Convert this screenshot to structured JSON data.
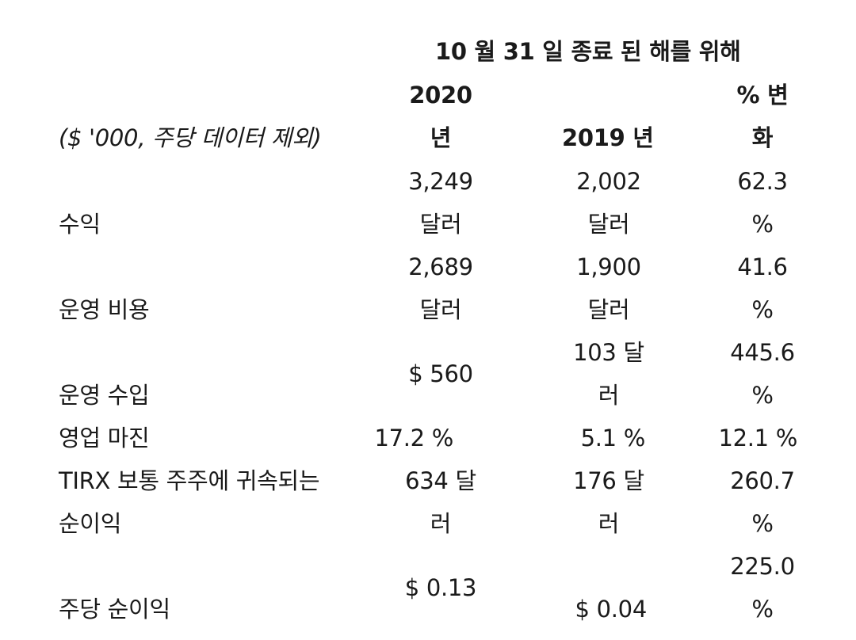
{
  "table": {
    "period_header": "10 월 31 일 종료 된 해를 위해",
    "unit_label": "($ '000, 주당 데이터 제외)",
    "columns": [
      {
        "line1": "2020",
        "line2": "년"
      },
      {
        "line1": "",
        "line2": "2019 년"
      },
      {
        "line1": "% 변",
        "line2": "화"
      }
    ],
    "rows": [
      {
        "label": [
          "수익"
        ],
        "y2020": [
          "3,249",
          "달러"
        ],
        "y2019": [
          "2,002",
          "달러"
        ],
        "change": [
          "62.3",
          "%"
        ]
      },
      {
        "label": [
          "운영 비용"
        ],
        "y2020": [
          "2,689",
          "달러"
        ],
        "y2019": [
          "1,900",
          "달러"
        ],
        "change": [
          "41.6",
          "%"
        ]
      },
      {
        "label": [
          "운영 수입"
        ],
        "y2020": [
          "$ 560"
        ],
        "y2019": [
          "103 달",
          "러"
        ],
        "change": [
          "445.6",
          "%"
        ]
      },
      {
        "label": [
          "영업 마진"
        ],
        "y2020": [
          "17.2 %"
        ],
        "y2019": [
          "5.1 %"
        ],
        "change": [
          "12.1 %"
        ]
      },
      {
        "label": [
          "TIRX 보통 주주에 귀속되는",
          "순이익"
        ],
        "y2020": [
          "634 달",
          "러"
        ],
        "y2019": [
          "176 달",
          "러"
        ],
        "change": [
          "260.7",
          "%"
        ]
      },
      {
        "label": [
          "주당 순이익"
        ],
        "y2020": [
          "$ 0.13"
        ],
        "y2019": [
          "$ 0.04"
        ],
        "change": [
          "225.0",
          "%"
        ]
      }
    ]
  }
}
